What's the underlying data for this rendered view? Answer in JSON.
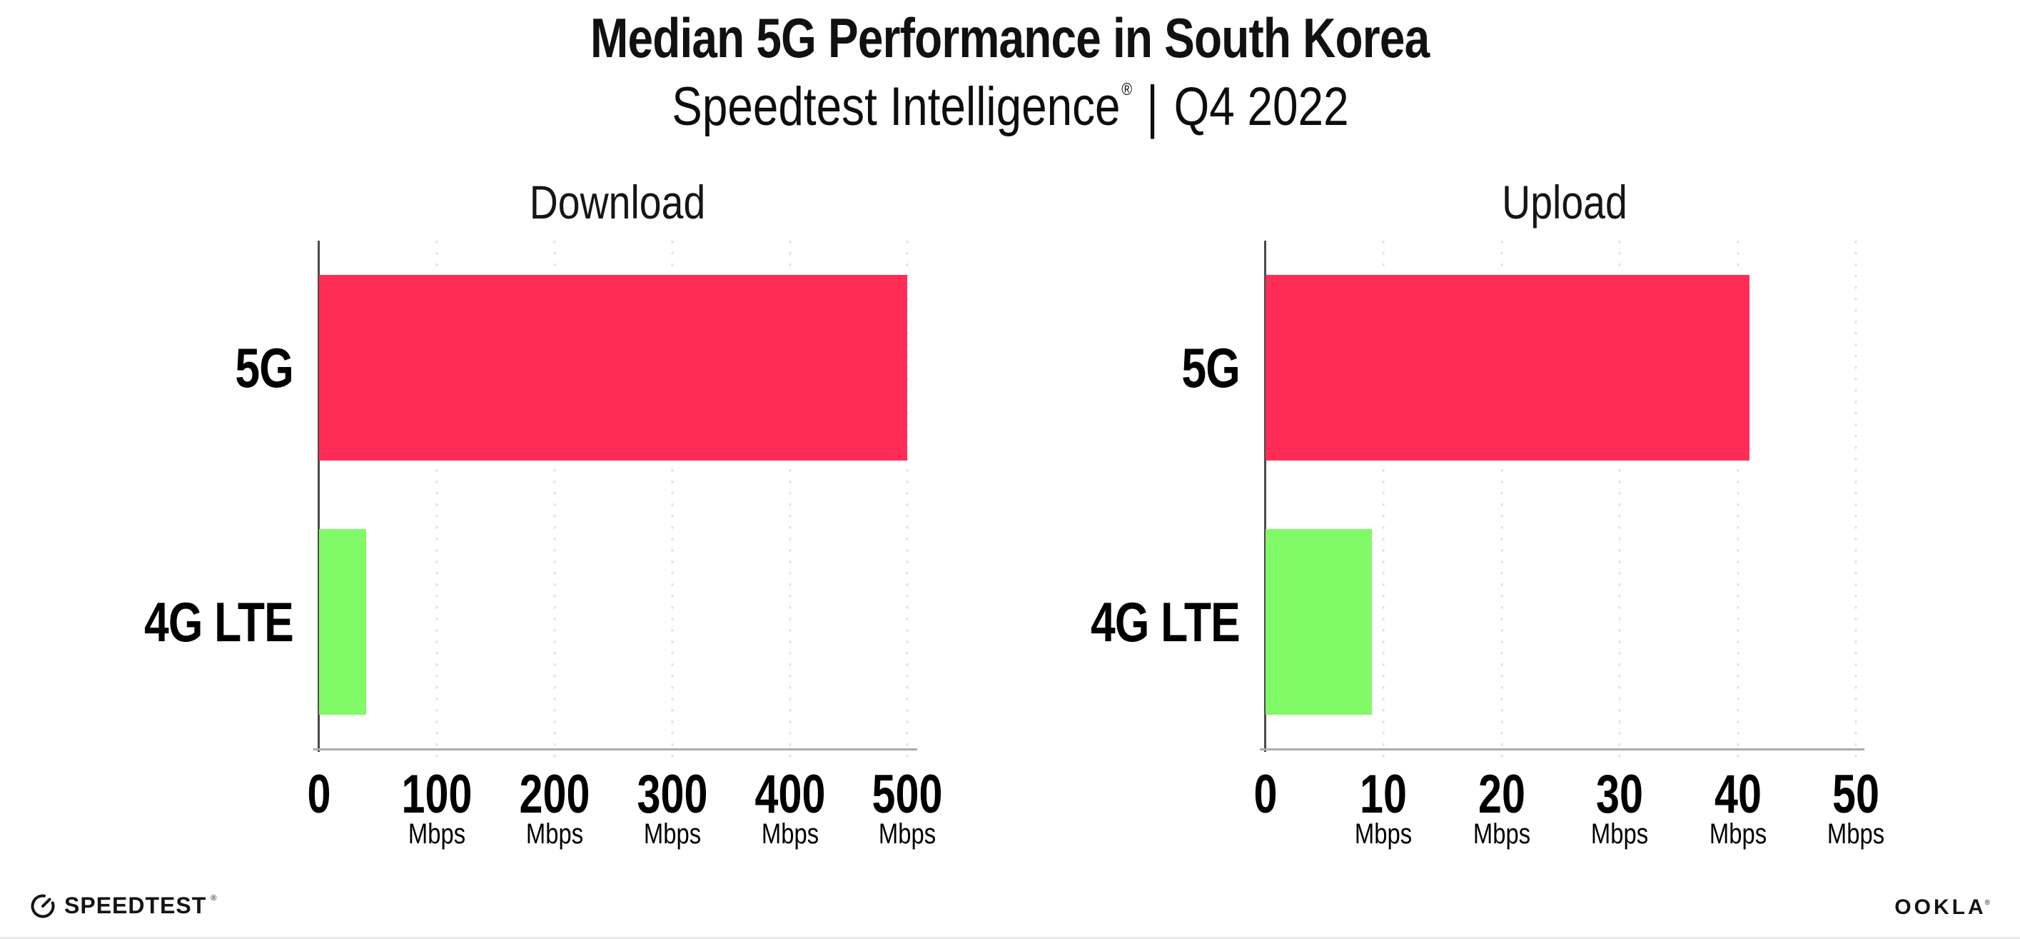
{
  "header": {
    "title": "Median 5G Performance in South Korea",
    "subtitle_brand": "Speedtest Intelligence",
    "subtitle_reg": "®",
    "subtitle_separator": "|",
    "subtitle_period": "Q4 2022"
  },
  "chart_data": [
    {
      "type": "bar",
      "orientation": "horizontal",
      "title": "Download",
      "categories": [
        "5G",
        "4G LTE"
      ],
      "values": [
        500,
        40
      ],
      "unit": "Mbps",
      "xlim": [
        0,
        507
      ],
      "xticks": [
        0,
        100,
        200,
        300,
        400,
        500
      ],
      "tick_unit_label": "Mbps",
      "bar_colors": [
        "#FF2D55",
        "#80FA66"
      ],
      "grid": "vertical-dotted",
      "legend": "none"
    },
    {
      "type": "bar",
      "orientation": "horizontal",
      "title": "Upload",
      "categories": [
        "5G",
        "4G LTE"
      ],
      "values": [
        41,
        9
      ],
      "unit": "Mbps",
      "xlim": [
        0,
        50.6
      ],
      "xticks": [
        0,
        10,
        20,
        30,
        40,
        50
      ],
      "tick_unit_label": "Mbps",
      "bar_colors": [
        "#FF2D55",
        "#80FA66"
      ],
      "grid": "vertical-dotted",
      "legend": "none"
    }
  ],
  "footer": {
    "speedtest_logo_text": "SPEEDTEST",
    "speedtest_reg": "®",
    "ookla_logo_text": "OOKLA",
    "ookla_reg": "®"
  },
  "colors": {
    "bar_5g": "#FF2D55",
    "bar_4g_lte": "#80FA66",
    "text": "#111111",
    "axis_line": "#ACACAC",
    "zero_line": "#4A4A4A",
    "gridline": "#E2E2EA"
  }
}
